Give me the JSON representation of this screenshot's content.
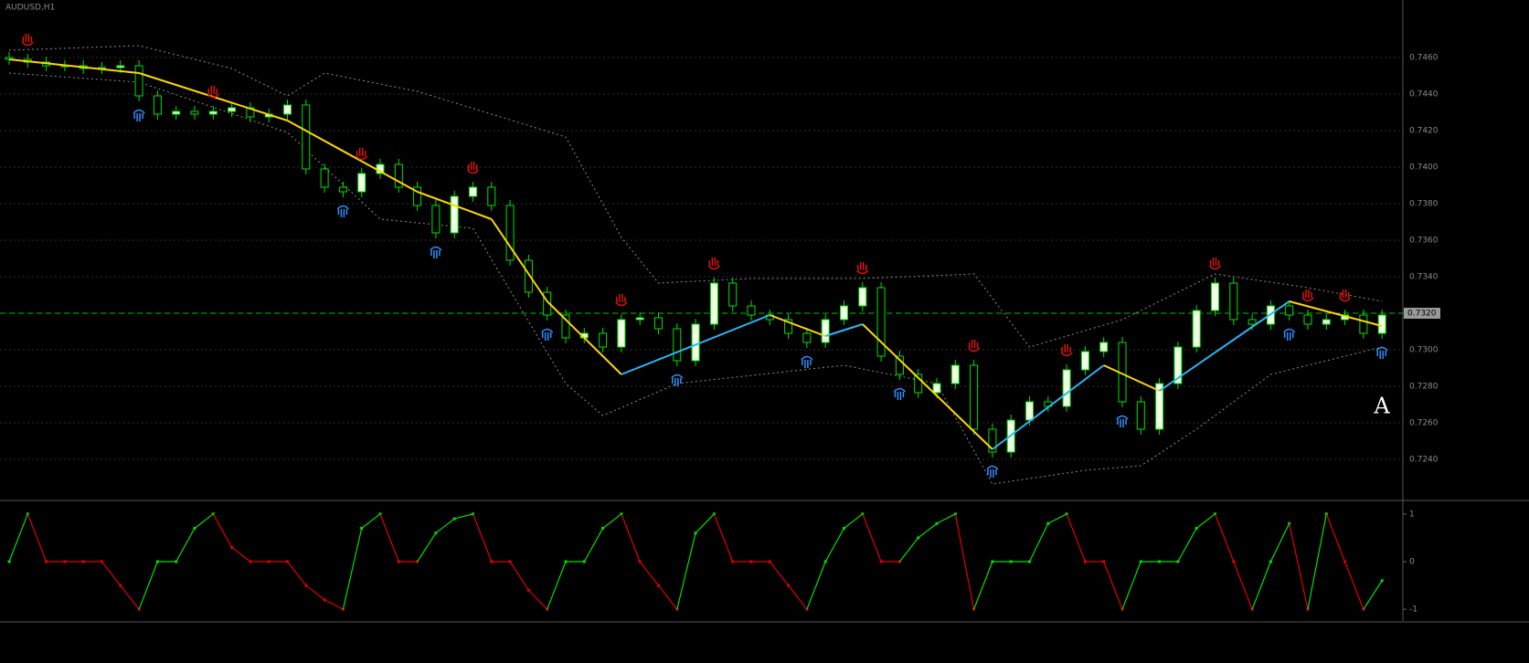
{
  "chart_data": [
    {
      "type": "candlestick",
      "title": "AUDUSD,H1",
      "annotation": "A",
      "categories": [
        null,
        null,
        null,
        null,
        null,
        null,
        null,
        null,
        null,
        null,
        null,
        null,
        null,
        null,
        null,
        null,
        null,
        null,
        null,
        null,
        null,
        null,
        null,
        null,
        null,
        null,
        null,
        null,
        null,
        null,
        null,
        null,
        null,
        null,
        null,
        null,
        null,
        null,
        null,
        null,
        null,
        null,
        null,
        null,
        null,
        null,
        null,
        null,
        null,
        null,
        null,
        null,
        null,
        null,
        null,
        null,
        null,
        null,
        null,
        null,
        null,
        null,
        null,
        null,
        null,
        null,
        null,
        null,
        null,
        null,
        null,
        null,
        null,
        null,
        null
      ],
      "open": [
        0.746,
        0.7459,
        0.74575,
        0.74555,
        0.74555,
        0.7454,
        0.74545,
        0.74555,
        0.7439,
        0.7429,
        0.74305,
        0.7429,
        0.74305,
        0.74325,
        0.74275,
        0.7429,
        0.7434,
        0.7399,
        0.7389,
        0.73865,
        0.73965,
        0.74015,
        0.7389,
        0.7379,
        0.7364,
        0.7384,
        0.7389,
        0.7379,
        0.7349,
        0.73315,
        0.7319,
        0.73065,
        0.7309,
        0.73015,
        0.73165,
        0.73175,
        0.73115,
        0.7294,
        0.7314,
        0.73365,
        0.7324,
        0.7319,
        0.73165,
        0.7309,
        0.7304,
        0.73165,
        0.7324,
        0.7334,
        0.72965,
        0.72865,
        0.72765,
        0.72815,
        0.72915,
        0.72565,
        0.7244,
        0.72615,
        0.72715,
        0.7269,
        0.7289,
        0.7299,
        0.7304,
        0.72715,
        0.72565,
        0.72815,
        0.73015,
        0.73215,
        0.73365,
        0.73165,
        0.7314,
        0.7324,
        0.7319,
        0.7314,
        0.73165,
        0.7319,
        0.7309
      ],
      "high": [
        0.7463,
        0.7462,
        0.74605,
        0.74585,
        0.74585,
        0.74575,
        0.74585,
        0.74585,
        0.7442,
        0.74335,
        0.74335,
        0.74335,
        0.74355,
        0.74355,
        0.7432,
        0.7437,
        0.7437,
        0.7402,
        0.7392,
        0.73995,
        0.74045,
        0.74045,
        0.7392,
        0.7382,
        0.7387,
        0.7392,
        0.7392,
        0.7382,
        0.7352,
        0.73345,
        0.7322,
        0.7312,
        0.7312,
        0.73195,
        0.73205,
        0.73205,
        0.73145,
        0.7317,
        0.73395,
        0.73395,
        0.7327,
        0.7322,
        0.73195,
        0.7312,
        0.73195,
        0.7327,
        0.7337,
        0.7337,
        0.72995,
        0.72895,
        0.72845,
        0.72945,
        0.72945,
        0.72595,
        0.72645,
        0.72745,
        0.72745,
        0.7292,
        0.7302,
        0.7307,
        0.7307,
        0.72745,
        0.72845,
        0.73045,
        0.73245,
        0.73395,
        0.73395,
        0.73195,
        0.7327,
        0.7327,
        0.7322,
        0.73195,
        0.7322,
        0.7322,
        0.7322
      ],
      "low": [
        0.7456,
        0.74545,
        0.74525,
        0.74525,
        0.7451,
        0.7451,
        0.74515,
        0.7436,
        0.7426,
        0.7426,
        0.7426,
        0.7426,
        0.74275,
        0.74245,
        0.74245,
        0.7426,
        0.7396,
        0.7386,
        0.73835,
        0.73835,
        0.73935,
        0.7386,
        0.7376,
        0.7361,
        0.7361,
        0.7381,
        0.7376,
        0.7346,
        0.73285,
        0.7316,
        0.73035,
        0.73035,
        0.72985,
        0.72985,
        0.73135,
        0.73085,
        0.7291,
        0.7291,
        0.7311,
        0.7321,
        0.7316,
        0.73135,
        0.7306,
        0.7301,
        0.7301,
        0.73135,
        0.7321,
        0.72935,
        0.72835,
        0.72735,
        0.72735,
        0.72785,
        0.72535,
        0.7241,
        0.7241,
        0.72585,
        0.7266,
        0.7266,
        0.7286,
        0.7296,
        0.72685,
        0.72535,
        0.72535,
        0.72785,
        0.72985,
        0.73185,
        0.73135,
        0.7311,
        0.7311,
        0.7316,
        0.7311,
        0.7311,
        0.73135,
        0.7306,
        0.7306
      ],
      "close": [
        0.7459,
        0.74575,
        0.74555,
        0.74555,
        0.7454,
        0.74545,
        0.74555,
        0.7439,
        0.7429,
        0.74305,
        0.7429,
        0.74305,
        0.74325,
        0.74275,
        0.7429,
        0.7434,
        0.7399,
        0.7389,
        0.73865,
        0.73965,
        0.74015,
        0.7389,
        0.7379,
        0.7364,
        0.7384,
        0.7389,
        0.7379,
        0.7349,
        0.73315,
        0.7319,
        0.73065,
        0.7309,
        0.73015,
        0.73165,
        0.73175,
        0.73115,
        0.7294,
        0.7314,
        0.73365,
        0.7324,
        0.7319,
        0.73165,
        0.7309,
        0.7304,
        0.73165,
        0.7324,
        0.7334,
        0.72965,
        0.72865,
        0.72765,
        0.72815,
        0.72915,
        0.72565,
        0.7244,
        0.72615,
        0.72715,
        0.7269,
        0.7289,
        0.7299,
        0.7304,
        0.72715,
        0.72565,
        0.72815,
        0.73015,
        0.73215,
        0.73365,
        0.73165,
        0.7314,
        0.7324,
        0.7319,
        0.7314,
        0.73165,
        0.7319,
        0.7309,
        0.7319
      ],
      "bull_color": "#f2ffe6",
      "bear_color": "#000000",
      "wick_color": "#00e000",
      "ma": {
        "x": [
          0,
          7,
          15,
          22,
          26,
          29,
          33,
          41,
          44,
          46,
          53,
          59,
          62,
          69,
          74
        ],
        "values": [
          0.7459,
          0.74515,
          0.74255,
          0.73865,
          0.73715,
          0.73265,
          0.72865,
          0.7319,
          0.73075,
          0.7314,
          0.72455,
          0.72915,
          0.72775,
          0.73265,
          0.7313
        ],
        "up_color": "#29b6f6",
        "down_color": "#ffd600"
      },
      "bands": [
        {
          "x": [
            0,
            7,
            12,
            15,
            17,
            22,
            30,
            33,
            35,
            40,
            46,
            52,
            55,
            60,
            65,
            70,
            74
          ],
          "values": [
            0.7464,
            0.74665,
            0.7454,
            0.7439,
            0.74515,
            0.74415,
            0.74165,
            0.73615,
            0.73365,
            0.7339,
            0.7339,
            0.73415,
            0.73015,
            0.73165,
            0.73415,
            0.7334,
            0.73265
          ],
          "color": "#8a8a8a"
        },
        {
          "x": [
            0,
            7,
            15,
            20,
            25,
            30,
            32,
            36,
            45,
            50,
            53,
            58,
            61,
            64,
            68,
            74
          ],
          "values": [
            0.74515,
            0.74465,
            0.7419,
            0.73715,
            0.73665,
            0.72815,
            0.7264,
            0.72815,
            0.72915,
            0.72815,
            0.72265,
            0.7234,
            0.72365,
            0.72565,
            0.72865,
            0.73015
          ],
          "color": "#8a8a8a"
        }
      ],
      "signals": {
        "sell": {
          "x": [
            1,
            11,
            19,
            25,
            33,
            38,
            46,
            52,
            57,
            65,
            70,
            72
          ],
          "color": "#e01010"
        },
        "buy": {
          "x": [
            7,
            18,
            23,
            29,
            36,
            43,
            48,
            53,
            60,
            69,
            74
          ],
          "color": "#2f8fff"
        }
      },
      "price_line": {
        "value": 0.732,
        "label": "0.7320",
        "color": "#00c000"
      },
      "ylim": [
        0.7219,
        0.74915
      ],
      "yticks": [
        {
          "value": 0.746,
          "label": "0.7460"
        },
        {
          "value": 0.744,
          "label": "0.7440"
        },
        {
          "value": 0.742,
          "label": "0.7420"
        },
        {
          "value": 0.74,
          "label": "0.7400"
        },
        {
          "value": 0.738,
          "label": "0.7380"
        },
        {
          "value": 0.736,
          "label": "0.7360"
        },
        {
          "value": 0.734,
          "label": "0.7340"
        },
        {
          "value": 0.732,
          "label": "0.7320"
        },
        {
          "value": 0.73,
          "label": "0.7300"
        },
        {
          "value": 0.728,
          "label": "0.7280"
        },
        {
          "value": 0.726,
          "label": "0.7260"
        },
        {
          "value": 0.724,
          "label": "0.7240"
        }
      ],
      "grid": true
    },
    {
      "type": "line",
      "values": [
        0,
        1,
        0,
        0,
        0,
        0,
        -0.5,
        -1,
        0,
        0,
        0.7,
        1,
        0.3,
        0,
        0,
        0,
        -0.5,
        -0.8,
        -1,
        0.7,
        1,
        0,
        0,
        0.6,
        0.9,
        1,
        0,
        0,
        -0.6,
        -1,
        0,
        0,
        0.7,
        1,
        0,
        -0.5,
        -1,
        0.6,
        1,
        0,
        0,
        0,
        -0.5,
        -1,
        0,
        0.7,
        1,
        0,
        0,
        0.5,
        0.8,
        1,
        -1,
        0,
        0,
        0,
        0.8,
        1,
        0,
        0,
        -1,
        0,
        0,
        0,
        0.7,
        1,
        0,
        -1,
        0,
        0.8,
        -1,
        1,
        0,
        -1,
        -0.4
      ],
      "up_color": "#00e000",
      "down_color": "#e00000",
      "ylim": [
        -1.15,
        1.15
      ],
      "yticks": [
        1,
        0,
        -1
      ]
    }
  ]
}
